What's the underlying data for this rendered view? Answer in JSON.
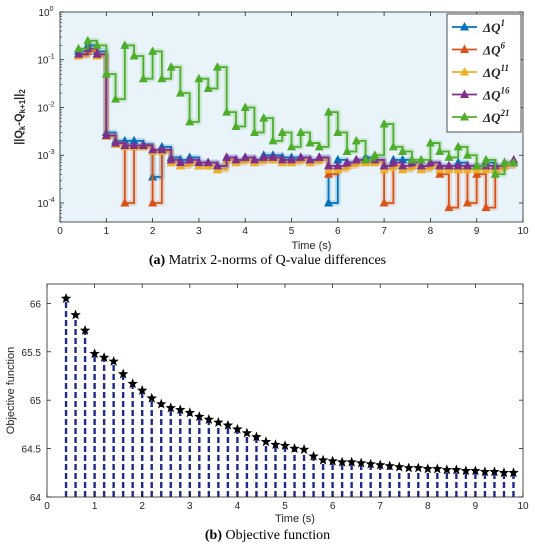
{
  "captions": {
    "a_label": "(a)",
    "a_text": " Matrix 2-norms of Q-value differences",
    "b_label": "(b)",
    "b_text": " Objective function"
  },
  "chart_data": [
    {
      "type": "line",
      "yscale": "log",
      "xlabel": "Time (s)",
      "ylabel": "||Q_k-Q_{k+1}||_2",
      "xlim": [
        0,
        10
      ],
      "ylim": [
        4e-05,
        1
      ],
      "x_ticks": [
        "0",
        "1",
        "2",
        "3",
        "4",
        "5",
        "6",
        "7",
        "8",
        "9",
        "10"
      ],
      "y_ticks": [
        "10^-4",
        "10^-3",
        "10^-2",
        "10^-1",
        "10^0"
      ],
      "y_tick_values": [
        0.0001,
        0.001,
        0.01,
        0.1,
        1
      ],
      "legend_position": "top-right",
      "background": "#e8f4fa",
      "series": [
        {
          "name": "ΔQ^1",
          "color": "#0072bd",
          "points": [
            [
              0.4,
              0.15
            ],
            [
              0.6,
              0.2
            ],
            [
              0.8,
              0.15
            ],
            [
              1.0,
              0.003
            ],
            [
              1.2,
              0.002
            ],
            [
              1.4,
              0.002
            ],
            [
              1.6,
              0.002
            ],
            [
              1.8,
              0.0017
            ],
            [
              2.0,
              0.00035
            ],
            [
              2.2,
              0.0015
            ],
            [
              2.4,
              0.0009
            ],
            [
              2.6,
              0.0008
            ],
            [
              2.8,
              0.0009
            ],
            [
              3.0,
              0.0007
            ],
            [
              3.2,
              0.0007
            ],
            [
              3.4,
              0.0006
            ],
            [
              3.6,
              0.0009
            ],
            [
              3.8,
              0.0008
            ],
            [
              4.0,
              0.0009
            ],
            [
              4.2,
              0.0008
            ],
            [
              4.4,
              0.001
            ],
            [
              4.6,
              0.001
            ],
            [
              4.8,
              0.0009
            ],
            [
              5.0,
              0.0009
            ],
            [
              5.2,
              0.0009
            ],
            [
              5.4,
              0.0008
            ],
            [
              5.6,
              0.0009
            ],
            [
              5.8,
              0.0001
            ],
            [
              6.0,
              0.0008
            ],
            [
              6.2,
              0.0007
            ],
            [
              6.4,
              0.0008
            ],
            [
              6.6,
              0.0009
            ],
            [
              6.8,
              0.0008
            ],
            [
              7.0,
              0.0006
            ],
            [
              7.2,
              0.0008
            ],
            [
              7.4,
              0.0008
            ],
            [
              7.6,
              0.0007
            ],
            [
              7.8,
              0.0006
            ],
            [
              8.0,
              0.0007
            ],
            [
              8.2,
              0.0006
            ],
            [
              8.4,
              0.0006
            ],
            [
              8.6,
              0.0007
            ],
            [
              8.8,
              0.0006
            ],
            [
              9.0,
              0.0006
            ],
            [
              9.2,
              0.0007
            ],
            [
              9.4,
              0.0006
            ],
            [
              9.6,
              0.0006
            ],
            [
              9.8,
              0.0007
            ]
          ]
        },
        {
          "name": "ΔQ^6",
          "color": "#d95319",
          "points": [
            [
              0.4,
              0.12
            ],
            [
              0.6,
              0.15
            ],
            [
              0.8,
              0.12
            ],
            [
              1.0,
              0.0025
            ],
            [
              1.2,
              0.0017
            ],
            [
              1.4,
              0.0001
            ],
            [
              1.6,
              0.0015
            ],
            [
              1.8,
              0.0015
            ],
            [
              2.0,
              0.0001
            ],
            [
              2.2,
              0.0012
            ],
            [
              2.4,
              0.0007
            ],
            [
              2.6,
              0.0006
            ],
            [
              2.8,
              0.0007
            ],
            [
              3.0,
              0.0006
            ],
            [
              3.2,
              0.0006
            ],
            [
              3.4,
              0.0005
            ],
            [
              3.6,
              0.0008
            ],
            [
              3.8,
              0.0007
            ],
            [
              4.0,
              0.0008
            ],
            [
              4.2,
              0.0007
            ],
            [
              4.4,
              0.0008
            ],
            [
              4.6,
              0.0008
            ],
            [
              4.8,
              0.0007
            ],
            [
              5.0,
              0.0007
            ],
            [
              5.2,
              0.0008
            ],
            [
              5.4,
              0.0007
            ],
            [
              5.6,
              0.0008
            ],
            [
              5.8,
              0.0004
            ],
            [
              6.0,
              0.0005
            ],
            [
              6.2,
              0.0006
            ],
            [
              6.4,
              0.0007
            ],
            [
              6.6,
              0.0007
            ],
            [
              6.8,
              0.0007
            ],
            [
              7.0,
              0.0001
            ],
            [
              7.2,
              0.0006
            ],
            [
              7.4,
              0.0005
            ],
            [
              7.6,
              0.0006
            ],
            [
              7.8,
              0.0005
            ],
            [
              8.0,
              0.0006
            ],
            [
              8.2,
              0.0004
            ],
            [
              8.4,
              8e-05
            ],
            [
              8.6,
              0.0005
            ],
            [
              8.8,
              0.0001
            ],
            [
              9.0,
              0.0004
            ],
            [
              9.2,
              8e-05
            ],
            [
              9.4,
              0.0005
            ],
            [
              9.6,
              0.0006
            ],
            [
              9.8,
              0.0007
            ]
          ]
        },
        {
          "name": "ΔQ^11",
          "color": "#edb120",
          "points": [
            [
              0.4,
              0.12
            ],
            [
              0.6,
              0.16
            ],
            [
              0.8,
              0.12
            ],
            [
              1.0,
              0.0025
            ],
            [
              1.2,
              0.0017
            ],
            [
              1.4,
              0.0015
            ],
            [
              1.6,
              0.0015
            ],
            [
              1.8,
              0.0015
            ],
            [
              2.0,
              0.0012
            ],
            [
              2.2,
              0.0012
            ],
            [
              2.4,
              0.0007
            ],
            [
              2.6,
              0.0006
            ],
            [
              2.8,
              0.0007
            ],
            [
              3.0,
              0.0006
            ],
            [
              3.2,
              0.0006
            ],
            [
              3.4,
              0.0005
            ],
            [
              3.6,
              0.0008
            ],
            [
              3.8,
              0.0007
            ],
            [
              4.0,
              0.0008
            ],
            [
              4.2,
              0.0007
            ],
            [
              4.4,
              0.0008
            ],
            [
              4.6,
              0.0008
            ],
            [
              4.8,
              0.0007
            ],
            [
              5.0,
              0.0007
            ],
            [
              5.2,
              0.0008
            ],
            [
              5.4,
              0.0007
            ],
            [
              5.6,
              0.0008
            ],
            [
              5.8,
              0.0005
            ],
            [
              6.0,
              0.0005
            ],
            [
              6.2,
              0.0006
            ],
            [
              6.4,
              0.0007
            ],
            [
              6.6,
              0.0007
            ],
            [
              6.8,
              0.0007
            ],
            [
              7.0,
              0.0005
            ],
            [
              7.2,
              0.0006
            ],
            [
              7.4,
              0.0005
            ],
            [
              7.6,
              0.0006
            ],
            [
              7.8,
              0.0005
            ],
            [
              8.0,
              0.0006
            ],
            [
              8.2,
              0.0005
            ],
            [
              8.4,
              0.0005
            ],
            [
              8.6,
              0.0005
            ],
            [
              8.8,
              0.0005
            ],
            [
              9.0,
              0.0005
            ],
            [
              9.2,
              0.0005
            ],
            [
              9.4,
              0.0005
            ],
            [
              9.6,
              0.0006
            ],
            [
              9.8,
              0.0007
            ]
          ]
        },
        {
          "name": "ΔQ^16",
          "color": "#7e2f8e",
          "points": [
            [
              0.4,
              0.13
            ],
            [
              0.6,
              0.17
            ],
            [
              0.8,
              0.13
            ],
            [
              1.0,
              0.0026
            ],
            [
              1.2,
              0.0018
            ],
            [
              1.4,
              0.0016
            ],
            [
              1.6,
              0.0016
            ],
            [
              1.8,
              0.0016
            ],
            [
              2.0,
              0.0013
            ],
            [
              2.2,
              0.0013
            ],
            [
              2.4,
              0.0008
            ],
            [
              2.6,
              0.0007
            ],
            [
              2.8,
              0.0008
            ],
            [
              3.0,
              0.0007
            ],
            [
              3.2,
              0.0007
            ],
            [
              3.4,
              0.0006
            ],
            [
              3.6,
              0.0009
            ],
            [
              3.8,
              0.0008
            ],
            [
              4.0,
              0.0009
            ],
            [
              4.2,
              0.0008
            ],
            [
              4.4,
              0.0009
            ],
            [
              4.6,
              0.0009
            ],
            [
              4.8,
              0.0008
            ],
            [
              5.0,
              0.0008
            ],
            [
              5.2,
              0.0009
            ],
            [
              5.4,
              0.0008
            ],
            [
              5.6,
              0.0009
            ],
            [
              5.8,
              0.0006
            ],
            [
              6.0,
              0.0006
            ],
            [
              6.2,
              0.0007
            ],
            [
              6.4,
              0.0008
            ],
            [
              6.6,
              0.0008
            ],
            [
              6.8,
              0.0008
            ],
            [
              7.0,
              0.0006
            ],
            [
              7.2,
              0.0007
            ],
            [
              7.4,
              0.0006
            ],
            [
              7.6,
              0.0007
            ],
            [
              7.8,
              0.0006
            ],
            [
              8.0,
              0.0007
            ],
            [
              8.2,
              0.0006
            ],
            [
              8.4,
              0.0006
            ],
            [
              8.6,
              0.0006
            ],
            [
              8.8,
              0.0006
            ],
            [
              9.0,
              0.0006
            ],
            [
              9.2,
              0.0006
            ],
            [
              9.4,
              0.0006
            ],
            [
              9.6,
              0.0007
            ],
            [
              9.8,
              0.0008
            ]
          ]
        },
        {
          "name": "ΔQ^21",
          "color": "#4fad2c",
          "points": [
            [
              0.4,
              0.17
            ],
            [
              0.6,
              0.25
            ],
            [
              0.8,
              0.2
            ],
            [
              1.0,
              0.05
            ],
            [
              1.2,
              0.015
            ],
            [
              1.4,
              0.2
            ],
            [
              1.6,
              0.12
            ],
            [
              1.8,
              0.04
            ],
            [
              2.0,
              0.15
            ],
            [
              2.2,
              0.04
            ],
            [
              2.4,
              0.07
            ],
            [
              2.6,
              0.02
            ],
            [
              2.8,
              0.005
            ],
            [
              3.0,
              0.04
            ],
            [
              3.2,
              0.025
            ],
            [
              3.4,
              0.07
            ],
            [
              3.6,
              0.008
            ],
            [
              3.8,
              0.004
            ],
            [
              4.0,
              0.01
            ],
            [
              4.2,
              0.003
            ],
            [
              4.4,
              0.006
            ],
            [
              4.6,
              0.002
            ],
            [
              4.8,
              0.003
            ],
            [
              5.0,
              0.0015
            ],
            [
              5.2,
              0.003
            ],
            [
              5.4,
              0.0018
            ],
            [
              5.6,
              0.0015
            ],
            [
              5.8,
              0.008
            ],
            [
              6.0,
              0.003
            ],
            [
              6.2,
              0.0012
            ],
            [
              6.4,
              0.002
            ],
            [
              6.6,
              0.0008
            ],
            [
              6.8,
              0.001
            ],
            [
              7.0,
              0.0045
            ],
            [
              7.2,
              0.0015
            ],
            [
              7.4,
              0.0012
            ],
            [
              7.6,
              0.0008
            ],
            [
              7.8,
              0.0008
            ],
            [
              8.0,
              0.0018
            ],
            [
              8.2,
              0.0012
            ],
            [
              8.4,
              0.0009
            ],
            [
              8.6,
              0.0015
            ],
            [
              8.8,
              0.001
            ],
            [
              9.0,
              0.0006
            ],
            [
              9.2,
              0.0008
            ],
            [
              9.4,
              0.0004
            ],
            [
              9.6,
              0.0007
            ],
            [
              9.8,
              0.0007
            ]
          ]
        }
      ]
    },
    {
      "type": "stem",
      "xlabel": "Time (s)",
      "ylabel": "Objective function",
      "xlim": [
        0,
        10
      ],
      "ylim": [
        64,
        66.2
      ],
      "x_ticks": [
        "0",
        "1",
        "2",
        "3",
        "4",
        "5",
        "6",
        "7",
        "8",
        "9",
        "10"
      ],
      "y_ticks": [
        "64",
        "64.5",
        "65",
        "65.5",
        "66"
      ],
      "y_tick_values": [
        64,
        64.5,
        65,
        65.5,
        66
      ],
      "stem_color": "#1f2a8a",
      "marker_color": "#000000",
      "x": [
        0.4,
        0.6,
        0.8,
        1.0,
        1.2,
        1.4,
        1.6,
        1.8,
        2.0,
        2.2,
        2.4,
        2.6,
        2.8,
        3.0,
        3.2,
        3.4,
        3.6,
        3.8,
        4.0,
        4.2,
        4.4,
        4.6,
        4.8,
        5.0,
        5.2,
        5.4,
        5.6,
        5.8,
        6.0,
        6.2,
        6.4,
        6.6,
        6.8,
        7.0,
        7.2,
        7.4,
        7.6,
        7.8,
        8.0,
        8.2,
        8.4,
        8.6,
        8.8,
        9.0,
        9.2,
        9.4,
        9.6,
        9.8
      ],
      "values": [
        66.05,
        65.88,
        65.72,
        65.48,
        65.44,
        65.4,
        65.27,
        65.17,
        65.1,
        65.02,
        64.96,
        64.92,
        64.9,
        64.87,
        64.83,
        64.8,
        64.77,
        64.74,
        64.7,
        64.66,
        64.62,
        64.57,
        64.54,
        64.53,
        64.5,
        64.49,
        64.42,
        64.38,
        64.37,
        64.36,
        64.36,
        64.35,
        64.34,
        64.33,
        64.32,
        64.31,
        64.3,
        64.3,
        64.29,
        64.29,
        64.28,
        64.28,
        64.27,
        64.27,
        64.26,
        64.26,
        64.25,
        64.25
      ]
    }
  ]
}
